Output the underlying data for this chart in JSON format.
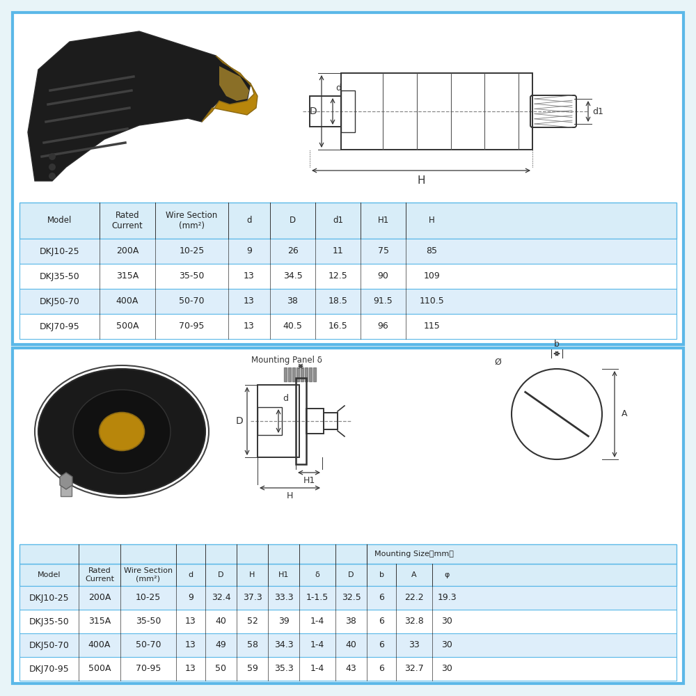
{
  "bg_outer": "#e8f4f8",
  "bg_panel": "#ffffff",
  "border_color": "#5bb8e8",
  "header_bg": "#d8edf8",
  "row_alt_bg": "#deeefa",
  "row_bg": "#ffffff",
  "text_color": "#222222",
  "dim_color": "#333333",
  "table1_headers": [
    "Model",
    "Rated\nCurrent",
    "Wire Section\n(mm²)",
    "d",
    "D",
    "d1",
    "H1",
    "H"
  ],
  "table1_col_widths": [
    115,
    80,
    105,
    60,
    65,
    65,
    65,
    75
  ],
  "table1_rows": [
    [
      "DKJ10-25",
      "200A",
      "10-25",
      "9",
      "26",
      "11",
      "75",
      "85"
    ],
    [
      "DKJ35-50",
      "315A",
      "35-50",
      "13",
      "34.5",
      "12.5",
      "90",
      "109"
    ],
    [
      "DKJ50-70",
      "400A",
      "50-70",
      "13",
      "38",
      "18.5",
      "91.5",
      "110.5"
    ],
    [
      "DKJ70-95",
      "500A",
      "70-95",
      "13",
      "40.5",
      "16.5",
      "96",
      "115"
    ]
  ],
  "table2_col_labels": [
    "Model",
    "Rated\nCurrent",
    "Wire Section\n(mm²)",
    "d",
    "D",
    "H",
    "H1",
    "δ",
    "D",
    "b",
    "A",
    "φ"
  ],
  "table2_col_widths": [
    85,
    60,
    80,
    42,
    45,
    45,
    45,
    52,
    45,
    42,
    52,
    42
  ],
  "table2_rows": [
    [
      "DKJ10-25",
      "200A",
      "10-25",
      "9",
      "32.4",
      "37.3",
      "33.3",
      "1-1.5",
      "32.5",
      "6",
      "22.2",
      "19.3"
    ],
    [
      "DKJ35-50",
      "315A",
      "35-50",
      "13",
      "40",
      "52",
      "39",
      "1-4",
      "38",
      "6",
      "32.8",
      "30"
    ],
    [
      "DKJ50-70",
      "400A",
      "50-70",
      "13",
      "49",
      "58",
      "34.3",
      "1-4",
      "40",
      "6",
      "33",
      "30"
    ],
    [
      "DKJ70-95",
      "500A",
      "70-95",
      "13",
      "50",
      "59",
      "35.3",
      "1-4",
      "43",
      "6",
      "32.7",
      "30"
    ]
  ],
  "mounting_size_label": "Mounting Size（mm）",
  "mounting_panel_label": "Mounting Panel δ",
  "font_header": 8.5,
  "font_data": 9,
  "font_dim": 9
}
